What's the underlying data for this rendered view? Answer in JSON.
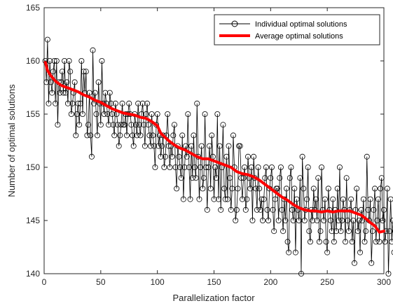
{
  "chart_data": {
    "type": "line",
    "title": "",
    "xlabel": "Parallelization factor",
    "ylabel": "Number of optimal solutions",
    "xlim": [
      0,
      300
    ],
    "ylim": [
      140,
      165
    ],
    "xticks": [
      0,
      50,
      100,
      150,
      200,
      250,
      300
    ],
    "yticks": [
      140,
      145,
      150,
      155,
      160,
      165
    ],
    "grid": false,
    "legend_position": "top-right",
    "series": [
      {
        "name": "Individual optimal solutions",
        "style": "line-with-circle-markers",
        "color": "#000000",
        "x_start": 1,
        "x_step": 1,
        "values": [
          160,
          158,
          162,
          156,
          160,
          158,
          157,
          159,
          160,
          156,
          160,
          154,
          158,
          157,
          158,
          159,
          157,
          160,
          157,
          158,
          156,
          160,
          159,
          155,
          156,
          157,
          158,
          153,
          155,
          156,
          154,
          156,
          160,
          155,
          159,
          157,
          159,
          153,
          154,
          157,
          153,
          151,
          161,
          156,
          157,
          155,
          153,
          158,
          156,
          154,
          160,
          156,
          155,
          157,
          156,
          155,
          154,
          157,
          156,
          155,
          154,
          153,
          156,
          155,
          154,
          152,
          153,
          154,
          156,
          154,
          154,
          155,
          153,
          155,
          156,
          155,
          154,
          153,
          152,
          155,
          154,
          153,
          156,
          154,
          153,
          155,
          156,
          154,
          152,
          155,
          156,
          154,
          153,
          152,
          155,
          153,
          152,
          150,
          154,
          155,
          152,
          153,
          151,
          152,
          153,
          150,
          151,
          153,
          155,
          152,
          150,
          152,
          151,
          153,
          154,
          150,
          148,
          152,
          151,
          150,
          149,
          153,
          147,
          150,
          152,
          151,
          155,
          150,
          147,
          152,
          149,
          153,
          150,
          149,
          156,
          151,
          147,
          150,
          152,
          148,
          149,
          155,
          150,
          146,
          150,
          152,
          148,
          153,
          151,
          147,
          150,
          149,
          155,
          147,
          152,
          146,
          150,
          154,
          148,
          147,
          151,
          147,
          152,
          149,
          146,
          148,
          153,
          150,
          145,
          146,
          148,
          152,
          152,
          149,
          147,
          149,
          150,
          146,
          147,
          151,
          149,
          148,
          150,
          145,
          151,
          149,
          148,
          146,
          150,
          148,
          146,
          147,
          145,
          147,
          149,
          150,
          146,
          145,
          148,
          149,
          150,
          146,
          144,
          147,
          148,
          148,
          145,
          149,
          150,
          146,
          144,
          147,
          145,
          148,
          143,
          142,
          149,
          150,
          146,
          145,
          148,
          142,
          147,
          146,
          145,
          149,
          140,
          151,
          148,
          145,
          146,
          147,
          150,
          144,
          143,
          146,
          145,
          148,
          146,
          147,
          145,
          149,
          143,
          144,
          150,
          146,
          145,
          147,
          143,
          142,
          148,
          146,
          145,
          144,
          147,
          143,
          146,
          144,
          148,
          145,
          150,
          144,
          145,
          147,
          146,
          143,
          149,
          145,
          144,
          146,
          147,
          143,
          145,
          141,
          146,
          148,
          144,
          145,
          142,
          146,
          145,
          147,
          143,
          144,
          151,
          146,
          145,
          147,
          141,
          144,
          146,
          148,
          143,
          145,
          147,
          143,
          148,
          149,
          145,
          146,
          143,
          144,
          148,
          140,
          144,
          147,
          143,
          145,
          142,
          144,
          143,
          146,
          143,
          145,
          144,
          143,
          144
        ],
        "note_values_index_is_parallelization_factor_minus_1": ""
      },
      {
        "name": "Average optimal solutions",
        "style": "thick-line",
        "color": "#ff0000",
        "x": [
          1,
          3,
          6,
          10,
          15,
          20,
          25,
          30,
          35,
          40,
          45,
          50,
          55,
          60,
          65,
          70,
          75,
          80,
          85,
          90,
          95,
          100,
          103,
          106,
          110,
          115,
          120,
          125,
          130,
          135,
          140,
          145,
          150,
          155,
          160,
          165,
          170,
          175,
          180,
          185,
          190,
          195,
          200,
          205,
          210,
          215,
          220,
          225,
          230,
          235,
          240,
          245,
          250,
          255,
          260,
          265,
          270,
          275,
          280,
          285,
          288,
          292,
          296,
          300
        ],
        "values": [
          159.9,
          159.1,
          158.6,
          158.1,
          157.7,
          157.5,
          157.3,
          157.1,
          156.8,
          156.6,
          156.3,
          156.1,
          155.8,
          155.5,
          155.3,
          155.1,
          155.0,
          154.9,
          154.7,
          154.6,
          154.3,
          153.9,
          153.2,
          152.9,
          152.5,
          152.1,
          151.8,
          151.6,
          151.3,
          151.0,
          150.8,
          150.8,
          150.6,
          150.4,
          150.2,
          150.0,
          149.6,
          149.4,
          149.3,
          149.1,
          148.8,
          148.4,
          148.0,
          147.6,
          147.2,
          146.9,
          146.5,
          146.2,
          146.0,
          145.9,
          145.9,
          145.8,
          145.9,
          145.8,
          145.9,
          145.9,
          145.9,
          145.7,
          145.5,
          145.1,
          144.8,
          144.5,
          143.9,
          144.0
        ]
      }
    ]
  }
}
